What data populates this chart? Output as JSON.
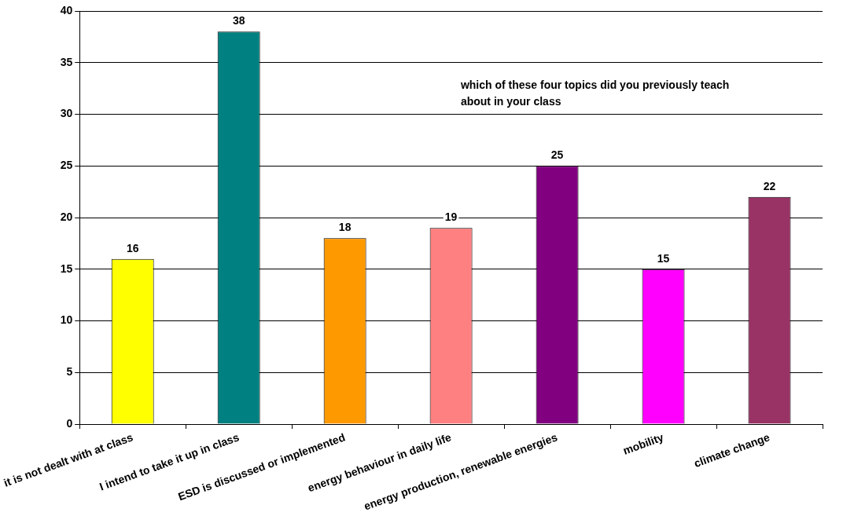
{
  "chart_data": {
    "type": "bar",
    "categories": [
      "it is not dealt with at class",
      "I intend to take it up in class",
      "ESD is discussed or implemented",
      "energy behaviour in daily life",
      "energy production, renewable energies",
      "mobility",
      "climate change"
    ],
    "values": [
      16,
      38,
      18,
      19,
      25,
      15,
      22
    ],
    "colors": [
      "#ffff00",
      "#008080",
      "#ff9900",
      "#ff8080",
      "#800080",
      "#ff00ff",
      "#993366"
    ],
    "ylim": [
      0,
      40
    ],
    "yticks": [
      0,
      5,
      10,
      15,
      20,
      25,
      30,
      35,
      40
    ],
    "grid": "y",
    "legend": false,
    "data_labels": true,
    "annotations": [
      "which of these four topics did you previously teach about in your class"
    ]
  }
}
